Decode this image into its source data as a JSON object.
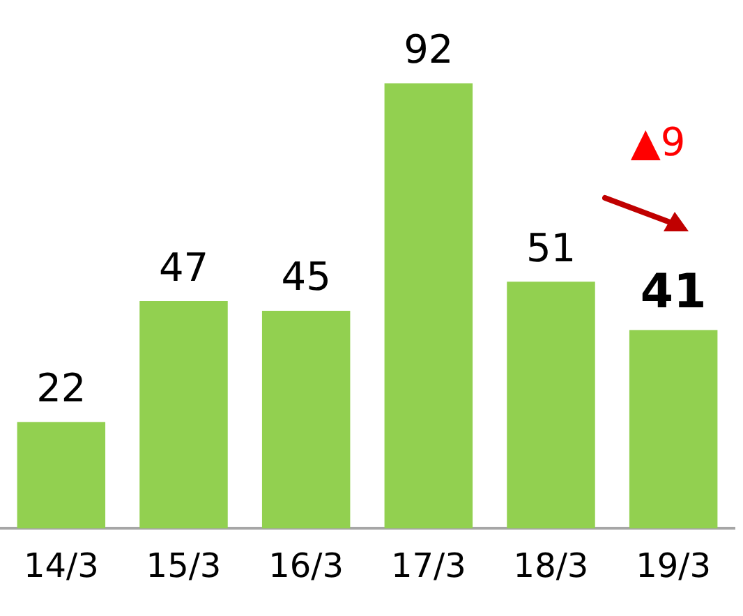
{
  "chart_data": {
    "type": "bar",
    "categories": [
      "14/3",
      "15/3",
      "16/3",
      "17/3",
      "18/3",
      "19/3"
    ],
    "values": [
      22,
      47,
      45,
      92,
      51,
      41
    ],
    "color": "#92d050",
    "data_labels": true,
    "grid": false,
    "legend": false,
    "tick_labels": "x",
    "annotations": [
      "▲9"
    ]
  }
}
